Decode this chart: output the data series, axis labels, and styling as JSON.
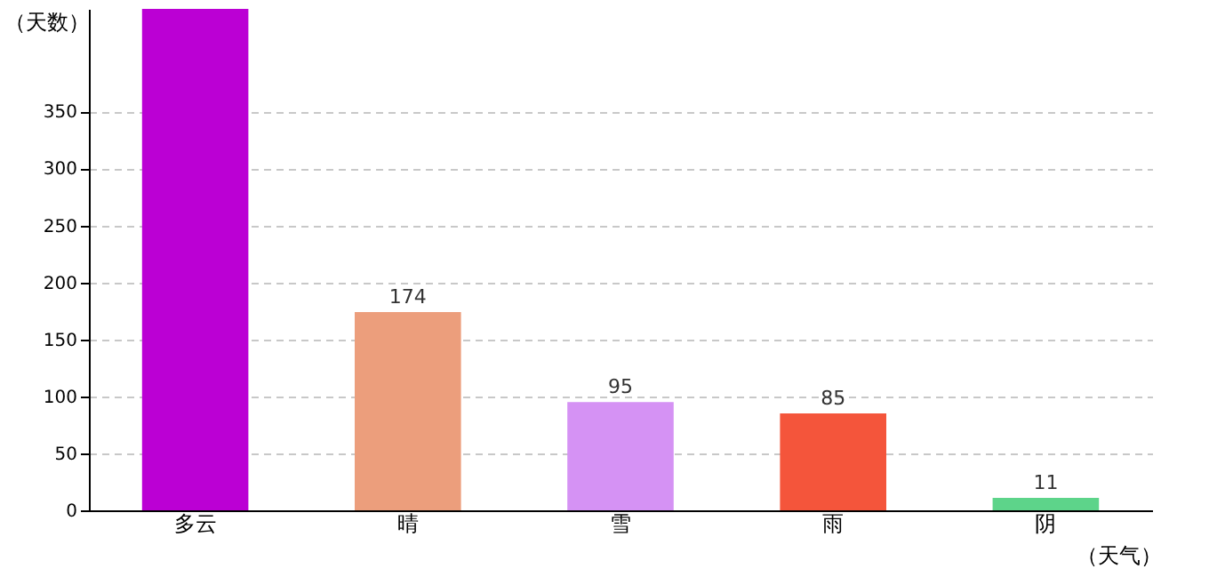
{
  "chart_data": {
    "type": "bar",
    "xlabel": "（天气）",
    "ylabel": "（天数）",
    "categories": [
      "多云",
      "晴",
      "雪",
      "雨",
      "阴"
    ],
    "values": [
      440,
      174,
      95,
      85,
      11
    ],
    "colors": [
      "#bb00d4",
      "#ec9e7c",
      "#d592f4",
      "#f4553b",
      "#5dd48a"
    ],
    "value_labels": [
      null,
      "174",
      "95",
      "85",
      "11"
    ],
    "ylim": [
      0,
      440
    ],
    "yticks": [
      0,
      50,
      100,
      150,
      200,
      250,
      300,
      350
    ],
    "grid": "y"
  }
}
